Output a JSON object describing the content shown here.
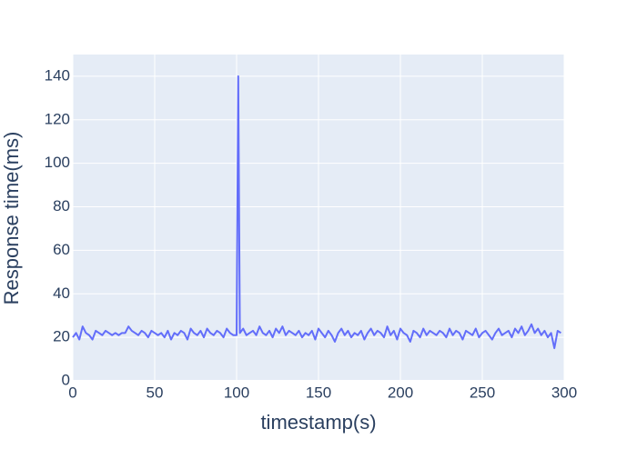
{
  "chart_data": {
    "type": "line",
    "xlabel": "timestamp(s)",
    "ylabel": "Response time(ms)",
    "xlim": [
      0,
      300
    ],
    "ylim": [
      0,
      150
    ],
    "xticks": [
      0,
      50,
      100,
      150,
      200,
      250,
      300
    ],
    "yticks": [
      0,
      20,
      40,
      60,
      80,
      100,
      120,
      140
    ],
    "grid": true,
    "x": [
      0,
      2,
      4,
      6,
      8,
      10,
      12,
      14,
      16,
      18,
      20,
      22,
      24,
      26,
      28,
      30,
      32,
      34,
      36,
      38,
      40,
      42,
      44,
      46,
      48,
      50,
      52,
      54,
      56,
      58,
      60,
      62,
      64,
      66,
      68,
      70,
      72,
      74,
      76,
      78,
      80,
      82,
      84,
      86,
      88,
      90,
      92,
      94,
      96,
      98,
      100,
      101,
      102,
      104,
      106,
      108,
      110,
      112,
      114,
      116,
      118,
      120,
      122,
      124,
      126,
      128,
      130,
      132,
      134,
      136,
      138,
      140,
      142,
      144,
      146,
      148,
      150,
      152,
      154,
      156,
      158,
      160,
      162,
      164,
      166,
      168,
      170,
      172,
      174,
      176,
      178,
      180,
      182,
      184,
      186,
      188,
      190,
      192,
      194,
      196,
      198,
      200,
      202,
      204,
      206,
      208,
      210,
      212,
      214,
      216,
      218,
      220,
      222,
      224,
      226,
      228,
      230,
      232,
      234,
      236,
      238,
      240,
      242,
      244,
      246,
      248,
      250,
      252,
      254,
      256,
      258,
      260,
      262,
      264,
      266,
      268,
      270,
      272,
      274,
      276,
      278,
      280,
      282,
      284,
      286,
      288,
      290,
      292,
      294,
      296,
      298
    ],
    "series": [
      {
        "color": "#636efa",
        "values": [
          20,
          22,
          19,
          25,
          22,
          21,
          19,
          23,
          22,
          21,
          23,
          22,
          21,
          22,
          21,
          22,
          22,
          25,
          23,
          22,
          21,
          23,
          22,
          20,
          23,
          22,
          21,
          22,
          20,
          23,
          19,
          22,
          21,
          23,
          22,
          19,
          24,
          22,
          21,
          23,
          20,
          24,
          22,
          21,
          23,
          22,
          20,
          24,
          22,
          21,
          21,
          140,
          22,
          24,
          21,
          22,
          23,
          21,
          25,
          22,
          21,
          23,
          20,
          24,
          22,
          25,
          21,
          23,
          22,
          21,
          23,
          20,
          22,
          21,
          23,
          19,
          24,
          22,
          20,
          23,
          21,
          18,
          22,
          24,
          21,
          23,
          20,
          22,
          21,
          23,
          19,
          22,
          24,
          21,
          23,
          22,
          20,
          25,
          21,
          23,
          19,
          24,
          22,
          21,
          18,
          23,
          22,
          20,
          24,
          21,
          23,
          22,
          21,
          23,
          22,
          20,
          24,
          21,
          23,
          22,
          19,
          23,
          22,
          21,
          24,
          20,
          22,
          23,
          21,
          19,
          22,
          24,
          21,
          22,
          23,
          20,
          24,
          22,
          25,
          21,
          23,
          26,
          22,
          24,
          21,
          23,
          20,
          22,
          15,
          23,
          22
        ]
      }
    ]
  }
}
